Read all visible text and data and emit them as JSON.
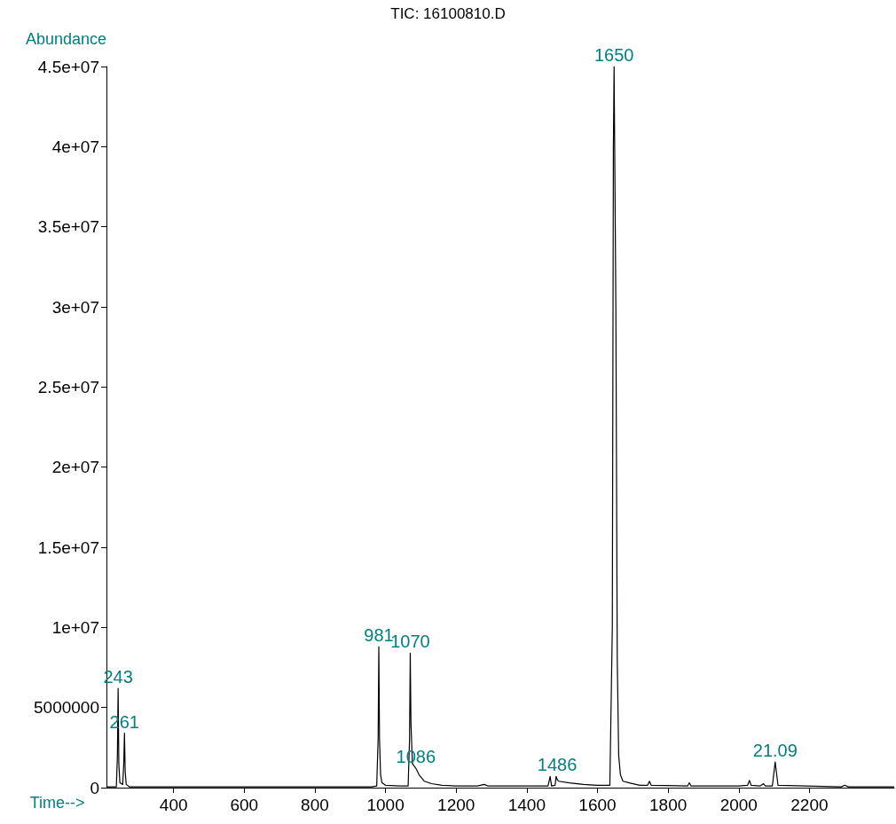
{
  "chart_data": {
    "type": "line",
    "title": "TIC: 16100810.D",
    "xlabel": "Time-->",
    "ylabel": "Abundance",
    "xlim": [
      210,
      2440
    ],
    "xticks": [
      400,
      600,
      800,
      1000,
      1200,
      1400,
      1600,
      1800,
      2000,
      2200
    ],
    "ylim": [
      0,
      45000000
    ],
    "yticks": [
      0,
      5000000,
      {
        "value": 10000000,
        "label": "1e+07"
      },
      {
        "value": 15000000,
        "label": "1.5e+07"
      },
      {
        "value": 20000000,
        "label": "2e+07"
      },
      {
        "value": 25000000,
        "label": "2.5e+07"
      },
      {
        "value": 30000000,
        "label": "3e+07"
      },
      {
        "value": 35000000,
        "label": "3.5e+07"
      },
      {
        "value": 40000000,
        "label": "4e+07"
      },
      {
        "value": 45000000,
        "label": "4.5e+07"
      }
    ],
    "grid": false,
    "marker": "none",
    "line_style": "solid",
    "series": [
      {
        "color": "#000000",
        "x": [
          210,
          238,
          241,
          243,
          245,
          248,
          256,
          259,
          261,
          263,
          266,
          275,
          400,
          600,
          900,
          960,
          975,
          979,
          981,
          983,
          986,
          990,
          1000,
          1040,
          1064,
          1068,
          1070,
          1072,
          1076,
          1086,
          1095,
          1110,
          1130,
          1160,
          1200,
          1260,
          1280,
          1290,
          1400,
          1460,
          1466,
          1470,
          1480,
          1483,
          1486,
          1490,
          1520,
          1560,
          1600,
          1635,
          1642,
          1645,
          1647,
          1652,
          1656,
          1660,
          1665,
          1672,
          1690,
          1720,
          1742,
          1747,
          1752,
          1855,
          1860,
          1865,
          2000,
          2025,
          2030,
          2035,
          2060,
          2070,
          2075,
          2095,
          2103,
          2111,
          2290,
          2300,
          2310,
          2440
        ],
        "values": [
          50000,
          50000,
          2000000,
          6200000,
          1500000,
          300000,
          200000,
          1500000,
          3400000,
          1000000,
          200000,
          50000,
          50000,
          50000,
          50000,
          50000,
          100000,
          3000000,
          8800000,
          3000000,
          800000,
          300000,
          150000,
          100000,
          100000,
          3000000,
          8400000,
          4000000,
          1500000,
          1200000,
          800000,
          400000,
          250000,
          150000,
          100000,
          100000,
          200000,
          100000,
          100000,
          100000,
          700000,
          100000,
          150000,
          700000,
          500000,
          400000,
          300000,
          200000,
          150000,
          150000,
          10000000,
          40000000,
          45000000,
          30000000,
          8000000,
          2000000,
          800000,
          400000,
          300000,
          150000,
          150000,
          400000,
          150000,
          100000,
          300000,
          100000,
          100000,
          150000,
          450000,
          150000,
          100000,
          250000,
          100000,
          100000,
          1600000,
          150000,
          50000,
          150000,
          50000,
          50000
        ]
      }
    ],
    "annotations": [
      {
        "text": "243",
        "x": 243,
        "y": 6200000
      },
      {
        "text": "261",
        "x": 261,
        "y": 3400000
      },
      {
        "text": "981",
        "x": 981,
        "y": 8800000
      },
      {
        "text": "1070",
        "x": 1070,
        "y": 8400000
      },
      {
        "text": "1086",
        "x": 1086,
        "y": 1200000
      },
      {
        "text": "1486",
        "x": 1486,
        "y": 700000
      },
      {
        "text": "1650",
        "x": 1647,
        "y": 45000000
      },
      {
        "text": "21.09",
        "x": 2103,
        "y": 1600000
      }
    ]
  }
}
